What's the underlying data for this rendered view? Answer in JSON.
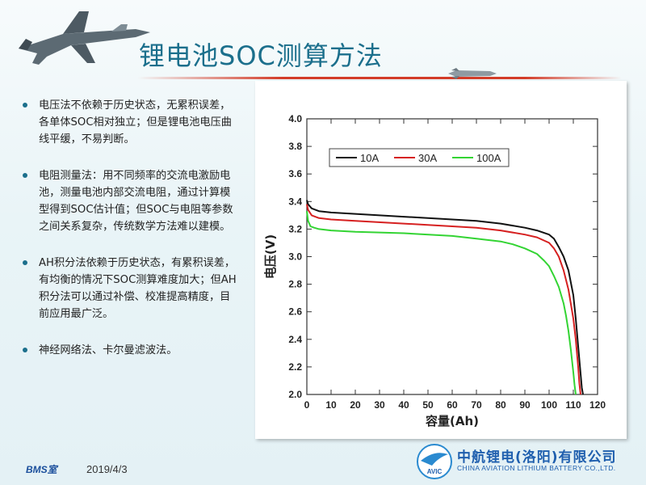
{
  "slide": {
    "title": "锂电池SOC测算方法",
    "bullets": [
      "电压法不依赖于历史状态，无累积误差，各单体SOC相对独立；但是锂电池电压曲线平缓，不易判断。",
      "电阻测量法：用不同频率的交流电激励电池，测量电池内部交流电阻，通过计算模型得到SOC估计值；但SOC与电阻等参数之间关系复杂，传统数学方法难以建模。",
      "AH积分法依赖于历史状态，有累积误差，有均衡的情况下SOC测算难度加大；但AH积分法可以通过补偿、校准提高精度，目前应用最广泛。",
      "神经网络法、卡尔曼滤波法。"
    ],
    "footer_mark": "BMS室",
    "date": "2019/4/3",
    "company_cn": "中航锂电(洛阳)有限公司",
    "company_en": "CHINA AVIATION LITHIUM BATTERY CO.,LTD.",
    "logo_text": "AVIC"
  },
  "colors": {
    "title": "#1b6f8c",
    "rule": "#d33c28",
    "brand": "#1f5fae"
  },
  "chart_data": {
    "type": "line",
    "title": "",
    "xlabel": "容量(Ah)",
    "ylabel": "电压(V)",
    "xlim": [
      0,
      120
    ],
    "ylim": [
      2.0,
      4.0
    ],
    "xticks": [
      0,
      10,
      20,
      30,
      40,
      50,
      60,
      70,
      80,
      90,
      100,
      110,
      120
    ],
    "yticks": [
      2.0,
      2.2,
      2.4,
      2.6,
      2.8,
      3.0,
      3.2,
      3.4,
      3.6,
      3.8,
      4.0
    ],
    "grid": false,
    "legend": "top",
    "series": [
      {
        "name": "10A",
        "color": "#111111",
        "x": [
          0,
          0.5,
          2,
          5,
          10,
          20,
          40,
          60,
          70,
          80,
          90,
          95,
          100,
          102,
          104,
          106,
          108,
          110,
          111,
          112,
          113,
          113.5,
          114
        ],
        "y": [
          3.41,
          3.38,
          3.35,
          3.33,
          3.32,
          3.31,
          3.29,
          3.27,
          3.26,
          3.24,
          3.21,
          3.19,
          3.16,
          3.13,
          3.07,
          3.0,
          2.9,
          2.72,
          2.55,
          2.35,
          2.15,
          2.05,
          2.0
        ]
      },
      {
        "name": "30A",
        "color": "#d62020",
        "x": [
          0,
          0.5,
          2,
          5,
          10,
          20,
          40,
          60,
          70,
          80,
          90,
          95,
          100,
          102,
          104,
          106,
          108,
          110,
          111,
          112,
          112.5,
          113
        ],
        "y": [
          3.38,
          3.34,
          3.3,
          3.28,
          3.27,
          3.26,
          3.24,
          3.22,
          3.21,
          3.19,
          3.16,
          3.14,
          3.1,
          3.06,
          3.0,
          2.9,
          2.76,
          2.55,
          2.4,
          2.2,
          2.08,
          2.0
        ]
      },
      {
        "name": "100A",
        "color": "#33d433",
        "x": [
          0,
          0.5,
          1.5,
          3,
          5,
          10,
          20,
          40,
          60,
          70,
          80,
          85,
          90,
          95,
          98,
          100,
          102,
          104,
          106,
          107,
          108,
          109,
          110,
          110.5,
          111
        ],
        "y": [
          3.33,
          3.26,
          3.22,
          3.21,
          3.2,
          3.19,
          3.18,
          3.17,
          3.15,
          3.13,
          3.11,
          3.09,
          3.06,
          3.02,
          2.97,
          2.93,
          2.86,
          2.78,
          2.66,
          2.57,
          2.46,
          2.32,
          2.16,
          2.07,
          2.0
        ]
      }
    ]
  }
}
